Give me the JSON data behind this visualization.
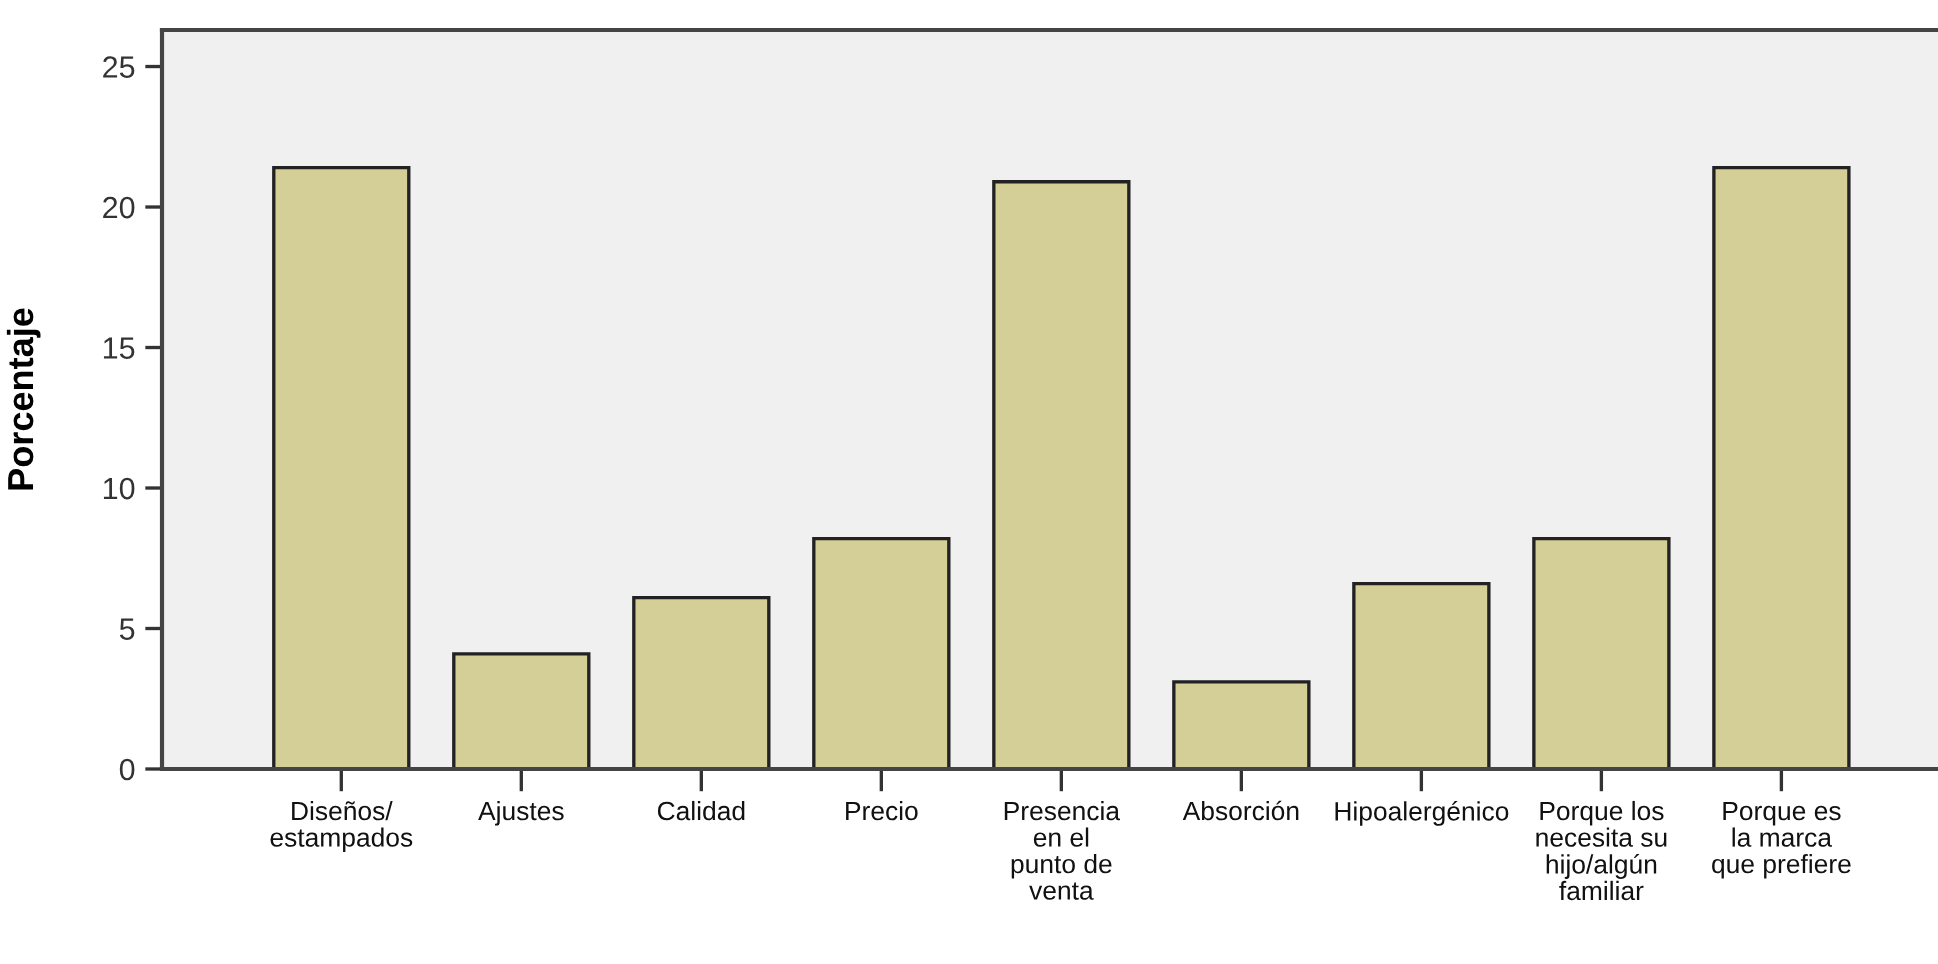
{
  "chart_data": {
    "type": "bar",
    "ylabel": "Porcentaje",
    "categories": [
      "Diseños/\nestampados",
      "Ajustes",
      "Calidad",
      "Precio",
      "Presencia\nen el\npunto de\nventa",
      "Absorción",
      "Hipoalergénico",
      "Porque los\nnecesita su\nhijo/algún\nfamiliar",
      "Porque es\nla marca\nque prefiere"
    ],
    "values": [
      21.4,
      4.1,
      6.1,
      8.2,
      20.9,
      3.1,
      6.6,
      8.2,
      21.4
    ],
    "color": "#d4cf97",
    "ylim": [
      0,
      26.3
    ],
    "yticks": [
      0,
      5,
      10,
      15,
      20,
      25
    ],
    "grid": false
  }
}
